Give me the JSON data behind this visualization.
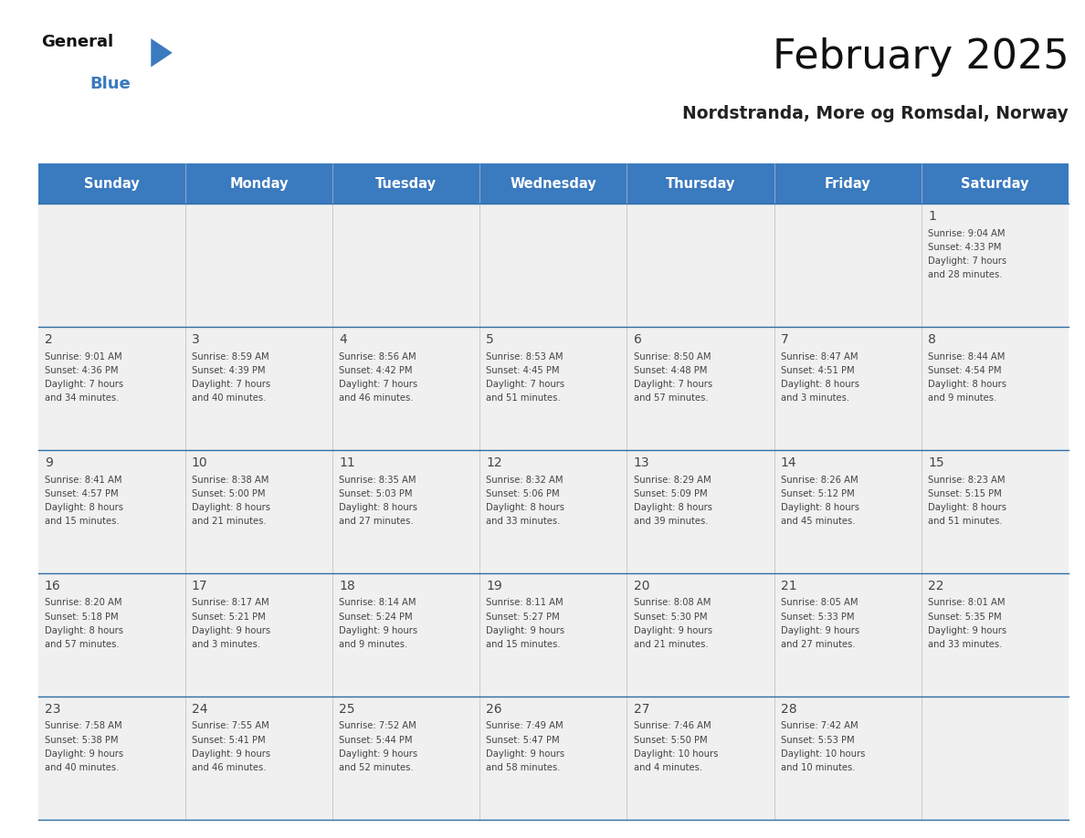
{
  "title": "February 2025",
  "subtitle": "Nordstranda, More og Romsdal, Norway",
  "header_color": "#3a7abf",
  "header_text_color": "#ffffff",
  "cell_bg_color": "#f0f0f0",
  "text_color": "#444444",
  "border_color": "#2e6da4",
  "days_of_week": [
    "Sunday",
    "Monday",
    "Tuesday",
    "Wednesday",
    "Thursday",
    "Friday",
    "Saturday"
  ],
  "calendar_data": [
    [
      null,
      null,
      null,
      null,
      null,
      null,
      {
        "day": "1",
        "sunrise": "9:04 AM",
        "sunset": "4:33 PM",
        "daylight_line1": "7 hours",
        "daylight_line2": "and 28 minutes."
      }
    ],
    [
      {
        "day": "2",
        "sunrise": "9:01 AM",
        "sunset": "4:36 PM",
        "daylight_line1": "7 hours",
        "daylight_line2": "and 34 minutes."
      },
      {
        "day": "3",
        "sunrise": "8:59 AM",
        "sunset": "4:39 PM",
        "daylight_line1": "7 hours",
        "daylight_line2": "and 40 minutes."
      },
      {
        "day": "4",
        "sunrise": "8:56 AM",
        "sunset": "4:42 PM",
        "daylight_line1": "7 hours",
        "daylight_line2": "and 46 minutes."
      },
      {
        "day": "5",
        "sunrise": "8:53 AM",
        "sunset": "4:45 PM",
        "daylight_line1": "7 hours",
        "daylight_line2": "and 51 minutes."
      },
      {
        "day": "6",
        "sunrise": "8:50 AM",
        "sunset": "4:48 PM",
        "daylight_line1": "7 hours",
        "daylight_line2": "and 57 minutes."
      },
      {
        "day": "7",
        "sunrise": "8:47 AM",
        "sunset": "4:51 PM",
        "daylight_line1": "8 hours",
        "daylight_line2": "and 3 minutes."
      },
      {
        "day": "8",
        "sunrise": "8:44 AM",
        "sunset": "4:54 PM",
        "daylight_line1": "8 hours",
        "daylight_line2": "and 9 minutes."
      }
    ],
    [
      {
        "day": "9",
        "sunrise": "8:41 AM",
        "sunset": "4:57 PM",
        "daylight_line1": "8 hours",
        "daylight_line2": "and 15 minutes."
      },
      {
        "day": "10",
        "sunrise": "8:38 AM",
        "sunset": "5:00 PM",
        "daylight_line1": "8 hours",
        "daylight_line2": "and 21 minutes."
      },
      {
        "day": "11",
        "sunrise": "8:35 AM",
        "sunset": "5:03 PM",
        "daylight_line1": "8 hours",
        "daylight_line2": "and 27 minutes."
      },
      {
        "day": "12",
        "sunrise": "8:32 AM",
        "sunset": "5:06 PM",
        "daylight_line1": "8 hours",
        "daylight_line2": "and 33 minutes."
      },
      {
        "day": "13",
        "sunrise": "8:29 AM",
        "sunset": "5:09 PM",
        "daylight_line1": "8 hours",
        "daylight_line2": "and 39 minutes."
      },
      {
        "day": "14",
        "sunrise": "8:26 AM",
        "sunset": "5:12 PM",
        "daylight_line1": "8 hours",
        "daylight_line2": "and 45 minutes."
      },
      {
        "day": "15",
        "sunrise": "8:23 AM",
        "sunset": "5:15 PM",
        "daylight_line1": "8 hours",
        "daylight_line2": "and 51 minutes."
      }
    ],
    [
      {
        "day": "16",
        "sunrise": "8:20 AM",
        "sunset": "5:18 PM",
        "daylight_line1": "8 hours",
        "daylight_line2": "and 57 minutes."
      },
      {
        "day": "17",
        "sunrise": "8:17 AM",
        "sunset": "5:21 PM",
        "daylight_line1": "9 hours",
        "daylight_line2": "and 3 minutes."
      },
      {
        "day": "18",
        "sunrise": "8:14 AM",
        "sunset": "5:24 PM",
        "daylight_line1": "9 hours",
        "daylight_line2": "and 9 minutes."
      },
      {
        "day": "19",
        "sunrise": "8:11 AM",
        "sunset": "5:27 PM",
        "daylight_line1": "9 hours",
        "daylight_line2": "and 15 minutes."
      },
      {
        "day": "20",
        "sunrise": "8:08 AM",
        "sunset": "5:30 PM",
        "daylight_line1": "9 hours",
        "daylight_line2": "and 21 minutes."
      },
      {
        "day": "21",
        "sunrise": "8:05 AM",
        "sunset": "5:33 PM",
        "daylight_line1": "9 hours",
        "daylight_line2": "and 27 minutes."
      },
      {
        "day": "22",
        "sunrise": "8:01 AM",
        "sunset": "5:35 PM",
        "daylight_line1": "9 hours",
        "daylight_line2": "and 33 minutes."
      }
    ],
    [
      {
        "day": "23",
        "sunrise": "7:58 AM",
        "sunset": "5:38 PM",
        "daylight_line1": "9 hours",
        "daylight_line2": "and 40 minutes."
      },
      {
        "day": "24",
        "sunrise": "7:55 AM",
        "sunset": "5:41 PM",
        "daylight_line1": "9 hours",
        "daylight_line2": "and 46 minutes."
      },
      {
        "day": "25",
        "sunrise": "7:52 AM",
        "sunset": "5:44 PM",
        "daylight_line1": "9 hours",
        "daylight_line2": "and 52 minutes."
      },
      {
        "day": "26",
        "sunrise": "7:49 AM",
        "sunset": "5:47 PM",
        "daylight_line1": "9 hours",
        "daylight_line2": "and 58 minutes."
      },
      {
        "day": "27",
        "sunrise": "7:46 AM",
        "sunset": "5:50 PM",
        "daylight_line1": "10 hours",
        "daylight_line2": "and 4 minutes."
      },
      {
        "day": "28",
        "sunrise": "7:42 AM",
        "sunset": "5:53 PM",
        "daylight_line1": "10 hours",
        "daylight_line2": "and 10 minutes."
      },
      null
    ]
  ]
}
